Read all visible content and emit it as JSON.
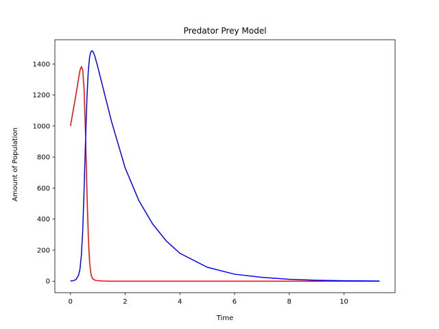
{
  "chart_data": {
    "type": "line",
    "title": "Predator Prey Model",
    "xlabel": "Time",
    "ylabel": "Amount of Population",
    "xlim": [
      -0.57,
      11.87
    ],
    "ylim": [
      -74,
      1556
    ],
    "xticks": [
      0,
      2,
      4,
      6,
      8,
      10
    ],
    "yticks": [
      0,
      200,
      400,
      600,
      800,
      1000,
      1200,
      1400
    ],
    "grid": false,
    "legend": "none",
    "series": [
      {
        "color": "#ff0000",
        "x": [
          0,
          0.1,
          0.2,
          0.3,
          0.35,
          0.4,
          0.45,
          0.5,
          0.55,
          0.6,
          0.65,
          0.7,
          0.75,
          0.8,
          0.9,
          1.0,
          1.2,
          1.5,
          2,
          3,
          4,
          6,
          8,
          10,
          11.3
        ],
        "y": [
          1000,
          1100,
          1200,
          1310,
          1360,
          1383,
          1360,
          1230,
          950,
          600,
          300,
          120,
          45,
          18,
          6,
          3,
          1,
          0,
          0,
          0,
          0,
          0,
          0,
          0,
          0
        ]
      },
      {
        "color": "#0000ff",
        "x": [
          0,
          0.1,
          0.2,
          0.3,
          0.35,
          0.4,
          0.45,
          0.5,
          0.55,
          0.6,
          0.65,
          0.7,
          0.75,
          0.8,
          0.85,
          0.9,
          1.0,
          1.2,
          1.5,
          2,
          2.5,
          3,
          3.5,
          4,
          5,
          6,
          7,
          8,
          9,
          10,
          11.3
        ],
        "y": [
          1,
          3,
          10,
          40,
          80,
          170,
          330,
          600,
          900,
          1170,
          1350,
          1445,
          1480,
          1485,
          1470,
          1445,
          1380,
          1240,
          1030,
          730,
          520,
          370,
          260,
          180,
          90,
          45,
          25,
          12,
          6,
          3,
          1
        ]
      }
    ]
  }
}
